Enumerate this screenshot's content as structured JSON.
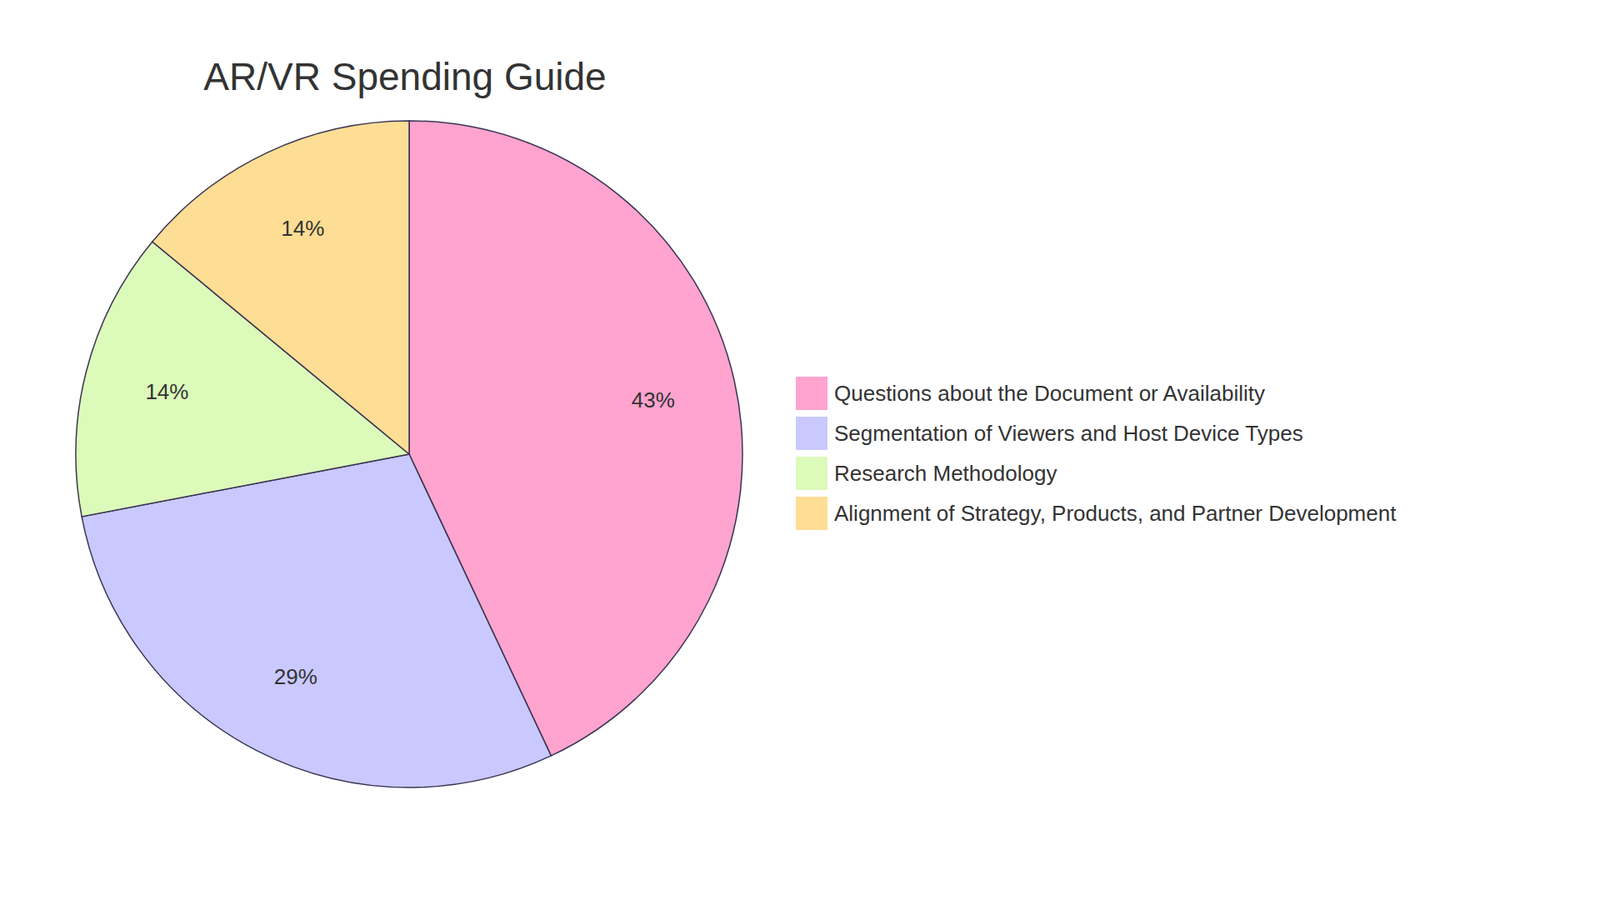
{
  "chart_data": {
    "type": "pie",
    "title": "AR/VR Spending Guide",
    "categories": [
      "Questions about the Document or Availability",
      "Segmentation of Viewers and Host Device Types",
      "Research Methodology",
      "Alignment of Strategy, Products, and Partner Development"
    ],
    "values": [
      43,
      29,
      14,
      14
    ],
    "value_labels": [
      "43%",
      "29%",
      "14%",
      "14%"
    ],
    "colors": [
      "#ffa3cf",
      "#c9c9ff",
      "#dcfaba",
      "#fedd94"
    ],
    "legend": "right",
    "data_labels": true
  }
}
